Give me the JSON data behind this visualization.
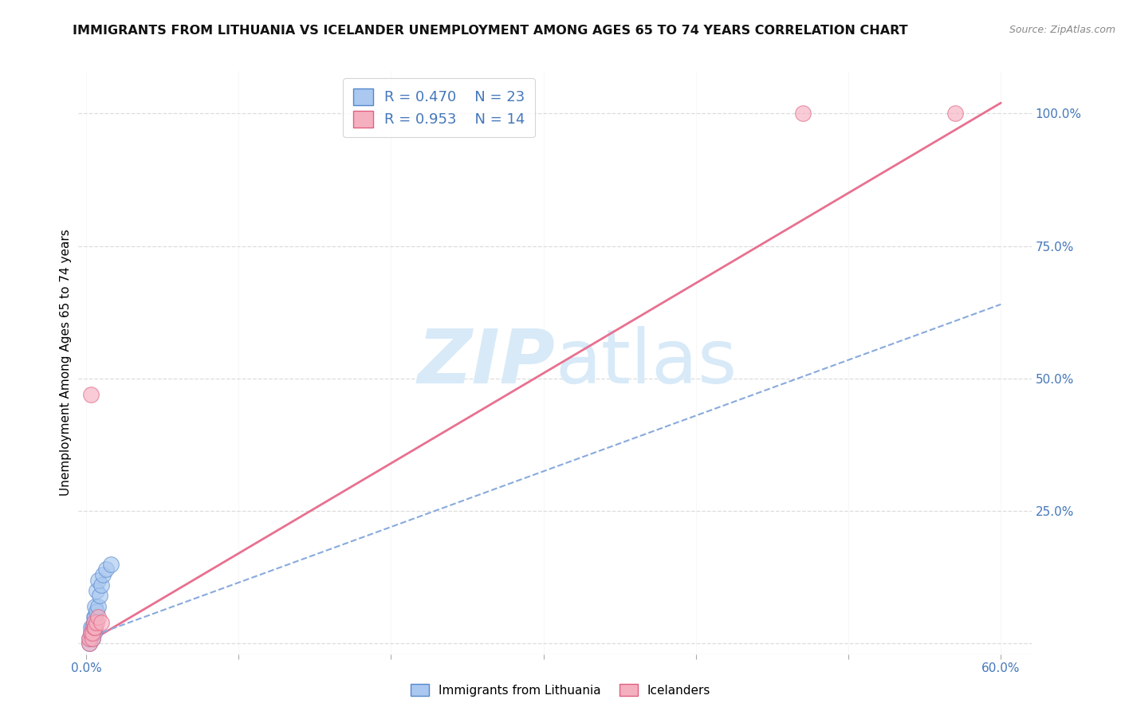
{
  "title": "IMMIGRANTS FROM LITHUANIA VS ICELANDER UNEMPLOYMENT AMONG AGES 65 TO 74 YEARS CORRELATION CHART",
  "source": "Source: ZipAtlas.com",
  "ylabel": "Unemployment Among Ages 65 to 74 years",
  "xlim": [
    -0.005,
    0.62
  ],
  "ylim": [
    -0.02,
    1.08
  ],
  "xticks": [
    0.0,
    0.1,
    0.2,
    0.3,
    0.4,
    0.5,
    0.6
  ],
  "xticklabels": [
    "0.0%",
    "",
    "",
    "",
    "",
    "",
    "60.0%"
  ],
  "yticks_right": [
    0.0,
    0.25,
    0.5,
    0.75,
    1.0
  ],
  "yticklabels_right": [
    "",
    "25.0%",
    "50.0%",
    "75.0%",
    "100.0%"
  ],
  "legend_r1": "R = 0.470",
  "legend_n1": "N = 23",
  "legend_r2": "R = 0.953",
  "legend_n2": "N = 14",
  "blue_scatter_color": "#aac8f0",
  "blue_edge_color": "#5588cc",
  "pink_scatter_color": "#f5b0c0",
  "pink_edge_color": "#e06080",
  "pink_line_color": "#e87090",
  "blue_line_color": "#88aadd",
  "watermark_color": "#d8eaf8",
  "right_axis_color": "#4477bb",
  "blue_scatter_x": [
    0.002,
    0.002,
    0.003,
    0.003,
    0.003,
    0.004,
    0.004,
    0.004,
    0.005,
    0.005,
    0.005,
    0.006,
    0.006,
    0.006,
    0.007,
    0.007,
    0.008,
    0.008,
    0.009,
    0.01,
    0.011,
    0.013,
    0.016
  ],
  "blue_scatter_y": [
    0.0,
    0.01,
    0.01,
    0.02,
    0.03,
    0.01,
    0.02,
    0.03,
    0.02,
    0.04,
    0.05,
    0.03,
    0.05,
    0.07,
    0.06,
    0.1,
    0.07,
    0.12,
    0.09,
    0.11,
    0.13,
    0.14,
    0.15
  ],
  "pink_scatter_x": [
    0.002,
    0.002,
    0.003,
    0.003,
    0.004,
    0.004,
    0.005,
    0.005,
    0.006,
    0.007,
    0.008,
    0.01,
    0.47,
    0.57
  ],
  "pink_scatter_y": [
    0.0,
    0.01,
    0.02,
    0.47,
    0.01,
    0.02,
    0.03,
    0.04,
    0.03,
    0.04,
    0.05,
    0.04,
    1.0,
    1.0
  ],
  "pink_line_x": [
    0.0,
    0.6
  ],
  "pink_line_y": [
    0.0,
    1.02
  ],
  "blue_line_x": [
    0.0,
    0.6
  ],
  "blue_line_y": [
    0.01,
    0.64
  ],
  "background_color": "#ffffff",
  "grid_color": "#dddddd",
  "title_fontsize": 11.5,
  "label_fontsize": 11,
  "tick_fontsize": 11,
  "legend_fontsize": 13
}
